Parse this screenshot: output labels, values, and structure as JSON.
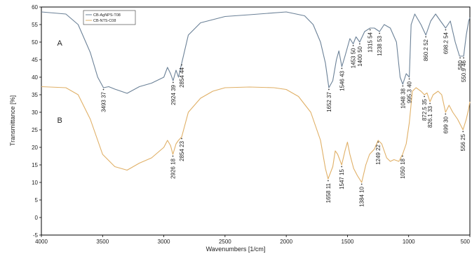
{
  "chart_data": {
    "type": "line",
    "xlabel": "Wavenumbers [1/cm]",
    "ylabel": "Transmittance [%]",
    "xlim": [
      4000,
      500
    ],
    "ylim": [
      -5,
      60
    ],
    "x_reversed": true,
    "grid": false,
    "legend_position": "top-left",
    "x_ticks": [
      4000,
      3500,
      3000,
      2500,
      2000,
      1500,
      1000,
      500
    ],
    "y_ticks": [
      -5,
      0,
      5,
      10,
      15,
      20,
      25,
      30,
      35,
      40,
      45,
      50,
      55,
      60
    ],
    "series": [
      {
        "name": "CB-AgNPS-T08",
        "label": "A",
        "color": "#6b8197",
        "points": [
          [
            4000,
            58.6
          ],
          [
            3800,
            58.0
          ],
          [
            3700,
            55.0
          ],
          [
            3600,
            47.0
          ],
          [
            3540,
            40.0
          ],
          [
            3493,
            37.0
          ],
          [
            3450,
            37.3
          ],
          [
            3400,
            36.6
          ],
          [
            3300,
            35.4
          ],
          [
            3200,
            37.3
          ],
          [
            3100,
            38.3
          ],
          [
            3000,
            40.0
          ],
          [
            2970,
            42.8
          ],
          [
            2945,
            41.0
          ],
          [
            2924,
            39.0
          ],
          [
            2900,
            42.0
          ],
          [
            2880,
            40.0
          ],
          [
            2854,
            44.0
          ],
          [
            2800,
            52.0
          ],
          [
            2700,
            55.5
          ],
          [
            2500,
            57.3
          ],
          [
            2300,
            57.8
          ],
          [
            2000,
            58.6
          ],
          [
            1850,
            57.5
          ],
          [
            1780,
            55.0
          ],
          [
            1720,
            50.0
          ],
          [
            1680,
            44.0
          ],
          [
            1652,
            37.0
          ],
          [
            1620,
            39.0
          ],
          [
            1590,
            45.0
          ],
          [
            1570,
            47.5
          ],
          [
            1546,
            43.0
          ],
          [
            1520,
            46.0
          ],
          [
            1480,
            51.0
          ],
          [
            1453,
            49.5
          ],
          [
            1430,
            51.5
          ],
          [
            1400,
            50.0
          ],
          [
            1360,
            53.0
          ],
          [
            1315,
            54.0
          ],
          [
            1280,
            54.0
          ],
          [
            1238,
            53.0
          ],
          [
            1200,
            55.0
          ],
          [
            1150,
            54.0
          ],
          [
            1100,
            50.0
          ],
          [
            1070,
            40.0
          ],
          [
            1048,
            38.0
          ],
          [
            1020,
            41.0
          ],
          [
            995,
            40.0
          ],
          [
            980,
            55.0
          ],
          [
            950,
            58.0
          ],
          [
            900,
            55.0
          ],
          [
            860,
            52.0
          ],
          [
            820,
            56.0
          ],
          [
            780,
            58.0
          ],
          [
            740,
            56.0
          ],
          [
            698,
            54.0
          ],
          [
            660,
            56.0
          ],
          [
            620,
            50.0
          ],
          [
            585,
            46.0
          ],
          [
            560,
            46.0
          ],
          [
            551,
            46.0
          ],
          [
            530,
            52.0
          ],
          [
            510,
            56.0
          ],
          [
            500,
            57.0
          ]
        ]
      },
      {
        "name": "CB-NTS-C08",
        "label": "B",
        "color": "#e0b067",
        "points": [
          [
            4000,
            37.3
          ],
          [
            3800,
            37.0
          ],
          [
            3700,
            35.0
          ],
          [
            3600,
            28.0
          ],
          [
            3500,
            18.0
          ],
          [
            3400,
            14.5
          ],
          [
            3300,
            13.5
          ],
          [
            3200,
            15.5
          ],
          [
            3100,
            17.0
          ],
          [
            3000,
            20.0
          ],
          [
            2970,
            22.0
          ],
          [
            2945,
            20.5
          ],
          [
            2926,
            18.0
          ],
          [
            2900,
            21.0
          ],
          [
            2880,
            22.0
          ],
          [
            2854,
            23.0
          ],
          [
            2800,
            30.0
          ],
          [
            2700,
            34.0
          ],
          [
            2600,
            36.0
          ],
          [
            2500,
            37.0
          ],
          [
            2300,
            37.2
          ],
          [
            2100,
            37.0
          ],
          [
            2000,
            36.5
          ],
          [
            1900,
            34.5
          ],
          [
            1800,
            30.0
          ],
          [
            1720,
            22.0
          ],
          [
            1680,
            14.0
          ],
          [
            1658,
            11.0
          ],
          [
            1620,
            14.5
          ],
          [
            1600,
            19.0
          ],
          [
            1580,
            18.0
          ],
          [
            1547,
            15.0
          ],
          [
            1520,
            19.0
          ],
          [
            1500,
            21.5
          ],
          [
            1480,
            18.0
          ],
          [
            1450,
            14.0
          ],
          [
            1420,
            12.0
          ],
          [
            1384,
            10.0
          ],
          [
            1350,
            15.0
          ],
          [
            1320,
            18.0
          ],
          [
            1280,
            19.5
          ],
          [
            1249,
            22.0
          ],
          [
            1220,
            21.0
          ],
          [
            1180,
            17.0
          ],
          [
            1150,
            16.0
          ],
          [
            1120,
            16.5
          ],
          [
            1080,
            16.0
          ],
          [
            1050,
            18.0
          ],
          [
            1020,
            21.0
          ],
          [
            995,
            27.0
          ],
          [
            970,
            36.0
          ],
          [
            940,
            37.0
          ],
          [
            900,
            36.0
          ],
          [
            872,
            35.0
          ],
          [
            850,
            35.5
          ],
          [
            826,
            33.0
          ],
          [
            800,
            35.0
          ],
          [
            760,
            36.0
          ],
          [
            730,
            35.0
          ],
          [
            699,
            30.0
          ],
          [
            670,
            32.0
          ],
          [
            640,
            30.0
          ],
          [
            600,
            28.0
          ],
          [
            556,
            25.0
          ],
          [
            530,
            28.0
          ],
          [
            510,
            31.0
          ],
          [
            500,
            33.0
          ]
        ]
      }
    ],
    "series_labels": [
      "A",
      "B"
    ],
    "annotations": [
      {
        "series": 0,
        "x": 3493,
        "y": 37,
        "text": "3493 37"
      },
      {
        "series": 0,
        "x": 2924,
        "y": 39,
        "text": "2924 39"
      },
      {
        "series": 0,
        "x": 2854,
        "y": 44,
        "text": "2854 44"
      },
      {
        "series": 0,
        "x": 1652,
        "y": 37,
        "text": "1652 37"
      },
      {
        "series": 0,
        "x": 1546,
        "y": 43,
        "text": "1546 43"
      },
      {
        "series": 0,
        "x": 1453,
        "y": 49.5,
        "text": "1453 50"
      },
      {
        "series": 0,
        "x": 1400,
        "y": 50,
        "text": "1400 50"
      },
      {
        "series": 0,
        "x": 1315,
        "y": 54,
        "text": "1315 54"
      },
      {
        "series": 0,
        "x": 1238,
        "y": 53,
        "text": "1238 53"
      },
      {
        "series": 0,
        "x": 1048,
        "y": 38,
        "text": "1048 38"
      },
      {
        "series": 0,
        "x": 995,
        "y": 40,
        "text": "995.3 40"
      },
      {
        "series": 0,
        "x": 860,
        "y": 52,
        "text": "860.2 52"
      },
      {
        "series": 0,
        "x": 698,
        "y": 54,
        "text": "698.2 54"
      },
      {
        "series": 0,
        "x": 580,
        "y": 46,
        "text": "580"
      },
      {
        "series": 0,
        "x": 551,
        "y": 46,
        "text": "550.9 46"
      },
      {
        "series": 1,
        "x": 2926,
        "y": 18,
        "text": "2926 18"
      },
      {
        "series": 1,
        "x": 2854,
        "y": 23,
        "text": "2854 23"
      },
      {
        "series": 1,
        "x": 1658,
        "y": 11,
        "text": "1658 11"
      },
      {
        "series": 1,
        "x": 1547,
        "y": 15,
        "text": "1547 15"
      },
      {
        "series": 1,
        "x": 1384,
        "y": 10,
        "text": "1384 10"
      },
      {
        "series": 1,
        "x": 1249,
        "y": 22,
        "text": "1249 22"
      },
      {
        "series": 1,
        "x": 1050,
        "y": 18,
        "text": "1050 18"
      },
      {
        "series": 1,
        "x": 872,
        "y": 35,
        "text": "872.5 35"
      },
      {
        "series": 1,
        "x": 826,
        "y": 33,
        "text": "826.1 33"
      },
      {
        "series": 1,
        "x": 699,
        "y": 30,
        "text": "699 30"
      },
      {
        "series": 1,
        "x": 556,
        "y": 25,
        "text": "556 25"
      }
    ]
  }
}
